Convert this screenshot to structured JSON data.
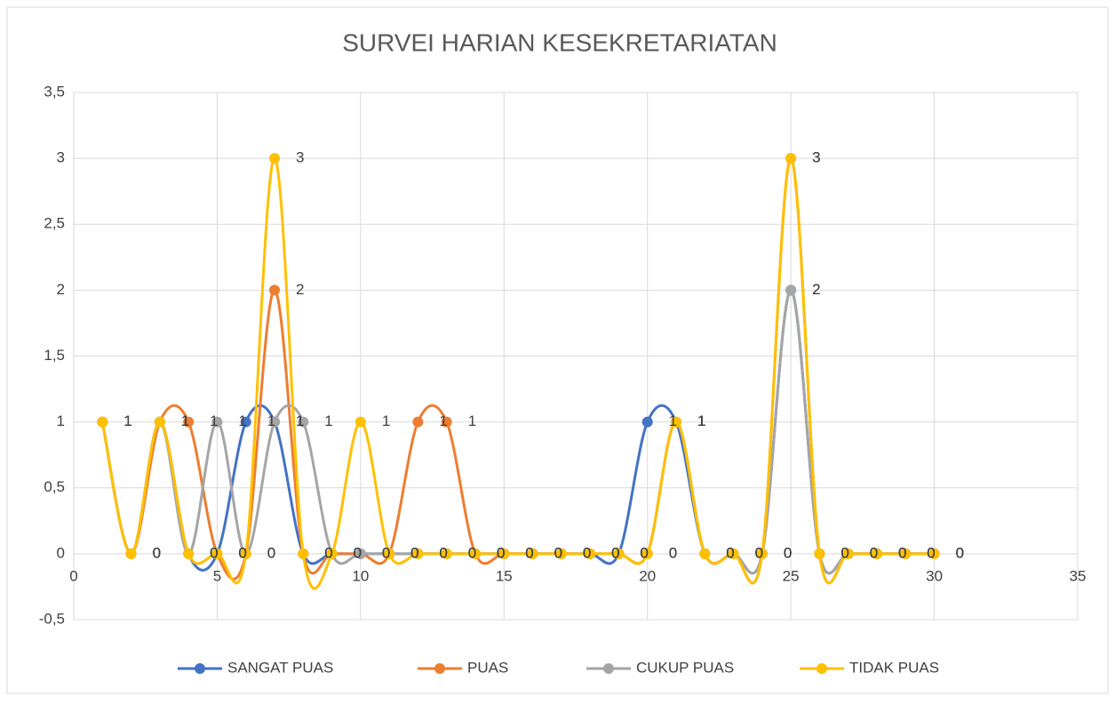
{
  "chart_data": {
    "type": "scatter-smooth",
    "title": "SURVEI HARIAN KESEKRETARIATAN",
    "x": [
      1,
      2,
      3,
      4,
      5,
      6,
      7,
      8,
      9,
      10,
      11,
      12,
      13,
      14,
      15,
      16,
      17,
      18,
      19,
      20,
      21,
      22,
      23,
      24,
      25,
      26,
      27,
      28,
      29,
      30
    ],
    "series": [
      {
        "name": "SANGAT PUAS",
        "color": "#4472c4",
        "values": [
          1,
          0,
          1,
          0,
          0,
          1,
          1,
          0,
          0,
          0,
          0,
          0,
          0,
          0,
          0,
          0,
          0,
          0,
          0,
          1,
          1,
          0,
          0,
          0,
          2,
          0,
          0,
          0,
          0,
          0
        ]
      },
      {
        "name": "PUAS",
        "color": "#ed7d31",
        "values": [
          1,
          0,
          1,
          1,
          0,
          0,
          2,
          0,
          0,
          0,
          0,
          1,
          1,
          0,
          0,
          0,
          0,
          0,
          0,
          0,
          1,
          0,
          0,
          0,
          3,
          0,
          0,
          0,
          0,
          0
        ]
      },
      {
        "name": "CUKUP PUAS",
        "color": "#a5a5a5",
        "values": [
          1,
          0,
          1,
          0,
          1,
          0,
          1,
          1,
          0,
          0,
          0,
          0,
          0,
          0,
          0,
          0,
          0,
          0,
          0,
          0,
          1,
          0,
          0,
          0,
          2,
          0,
          0,
          0,
          0,
          0
        ]
      },
      {
        "name": "TIDAK PUAS",
        "color": "#ffc000",
        "values": [
          1,
          0,
          1,
          0,
          0,
          0,
          3,
          0,
          0,
          1,
          0,
          0,
          0,
          0,
          0,
          0,
          0,
          0,
          0,
          0,
          1,
          0,
          0,
          0,
          3,
          0,
          0,
          0,
          0,
          0
        ]
      }
    ],
    "xlim": [
      0,
      35
    ],
    "xticks": [
      0,
      5,
      10,
      15,
      20,
      25,
      30,
      35
    ],
    "ylim": [
      -0.5,
      3.5
    ],
    "yticks": [
      {
        "value": -0.5,
        "label": "-0,5"
      },
      0,
      {
        "value": 0.5,
        "label": "0,5"
      },
      1,
      {
        "value": 1.5,
        "label": "1,5"
      },
      2,
      {
        "value": 2.5,
        "label": "2,5"
      },
      3,
      {
        "value": 3.5,
        "label": "3,5"
      }
    ],
    "grid": true,
    "legend": "bottom"
  }
}
